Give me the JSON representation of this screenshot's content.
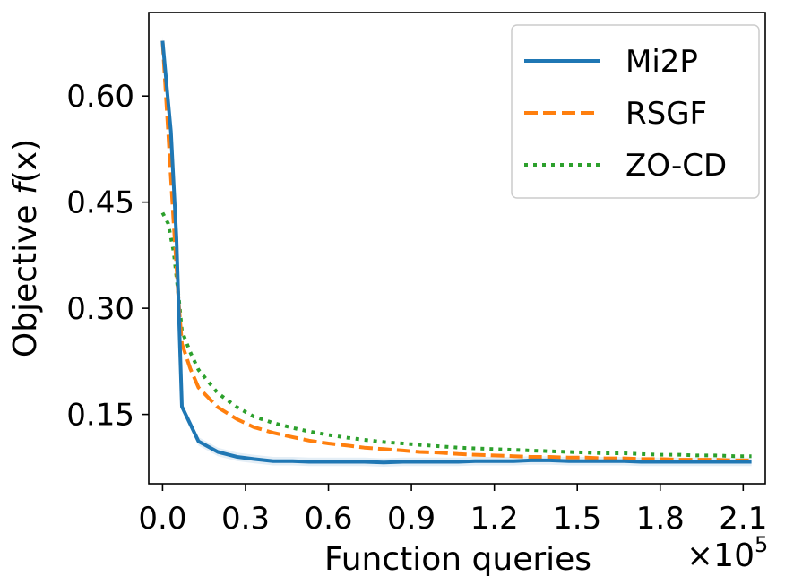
{
  "chart_data": {
    "type": "line",
    "xlabel": "Function queries",
    "x_multiplier_label": "×10",
    "x_multiplier_exponent": "5",
    "ylabel_prefix": "Objective ",
    "ylabel_fn": "f",
    "ylabel_arg": "(x)",
    "xlim": [
      -0.05,
      2.18
    ],
    "ylim": [
      0.052,
      0.718
    ],
    "xticks": [
      0.0,
      0.3,
      0.6,
      0.9,
      1.2,
      1.5,
      1.8,
      2.1
    ],
    "xtick_labels": [
      "0.0",
      "0.3",
      "0.6",
      "0.9",
      "1.2",
      "1.5",
      "1.8",
      "2.1"
    ],
    "yticks": [
      0.15,
      0.3,
      0.45,
      0.6
    ],
    "ytick_labels": [
      "0.15",
      "0.30",
      "0.45",
      "0.60"
    ],
    "grid": false,
    "legend_position": "top-right",
    "series": [
      {
        "name": "Mi2P",
        "color": "#1f77b4",
        "style": "solid",
        "x": [
          0.0,
          0.03,
          0.05,
          0.07,
          0.13,
          0.2,
          0.27,
          0.33,
          0.4,
          0.47,
          0.53,
          0.6,
          0.67,
          0.73,
          0.8,
          0.87,
          0.93,
          1.0,
          1.07,
          1.13,
          1.2,
          1.27,
          1.33,
          1.4,
          1.47,
          1.53,
          1.6,
          1.67,
          1.73,
          1.8,
          1.87,
          1.93,
          2.0,
          2.07,
          2.13
        ],
        "y": [
          0.678,
          0.55,
          0.4,
          0.161,
          0.112,
          0.097,
          0.09,
          0.087,
          0.084,
          0.084,
          0.083,
          0.083,
          0.083,
          0.083,
          0.082,
          0.083,
          0.083,
          0.083,
          0.083,
          0.084,
          0.084,
          0.084,
          0.085,
          0.085,
          0.084,
          0.084,
          0.084,
          0.084,
          0.083,
          0.083,
          0.083,
          0.083,
          0.083,
          0.083,
          0.083
        ]
      },
      {
        "name": "RSGF",
        "color": "#ff7f0e",
        "style": "dashed",
        "x": [
          0.0,
          0.02,
          0.04,
          0.06,
          0.07,
          0.1,
          0.13,
          0.2,
          0.27,
          0.33,
          0.4,
          0.47,
          0.53,
          0.6,
          0.67,
          0.73,
          0.8,
          0.87,
          0.93,
          1.0,
          1.07,
          1.13,
          1.2,
          1.27,
          1.33,
          1.4,
          1.47,
          1.53,
          1.6,
          1.67,
          1.73,
          1.8,
          1.87,
          1.93,
          2.0,
          2.07,
          2.13
        ],
        "y": [
          0.678,
          0.55,
          0.42,
          0.3,
          0.25,
          0.215,
          0.188,
          0.16,
          0.143,
          0.132,
          0.124,
          0.118,
          0.113,
          0.109,
          0.106,
          0.103,
          0.101,
          0.099,
          0.097,
          0.096,
          0.094,
          0.093,
          0.092,
          0.091,
          0.09,
          0.09,
          0.089,
          0.089,
          0.088,
          0.088,
          0.087,
          0.087,
          0.086,
          0.086,
          0.086,
          0.085,
          0.085
        ]
      },
      {
        "name": "ZO-CD",
        "color": "#2ca02c",
        "style": "dotted",
        "x": [
          0.0,
          0.02,
          0.04,
          0.06,
          0.07,
          0.1,
          0.13,
          0.2,
          0.27,
          0.33,
          0.4,
          0.47,
          0.53,
          0.6,
          0.67,
          0.73,
          0.8,
          0.87,
          0.93,
          1.0,
          1.07,
          1.13,
          1.2,
          1.27,
          1.33,
          1.4,
          1.47,
          1.53,
          1.6,
          1.67,
          1.73,
          1.8,
          1.87,
          1.93,
          2.0,
          2.07,
          2.13
        ],
        "y": [
          0.435,
          0.42,
          0.38,
          0.31,
          0.268,
          0.238,
          0.213,
          0.18,
          0.16,
          0.147,
          0.138,
          0.131,
          0.126,
          0.121,
          0.117,
          0.114,
          0.111,
          0.109,
          0.107,
          0.105,
          0.103,
          0.102,
          0.101,
          0.1,
          0.099,
          0.098,
          0.097,
          0.096,
          0.095,
          0.095,
          0.094,
          0.093,
          0.093,
          0.092,
          0.092,
          0.091,
          0.091
        ]
      }
    ]
  }
}
